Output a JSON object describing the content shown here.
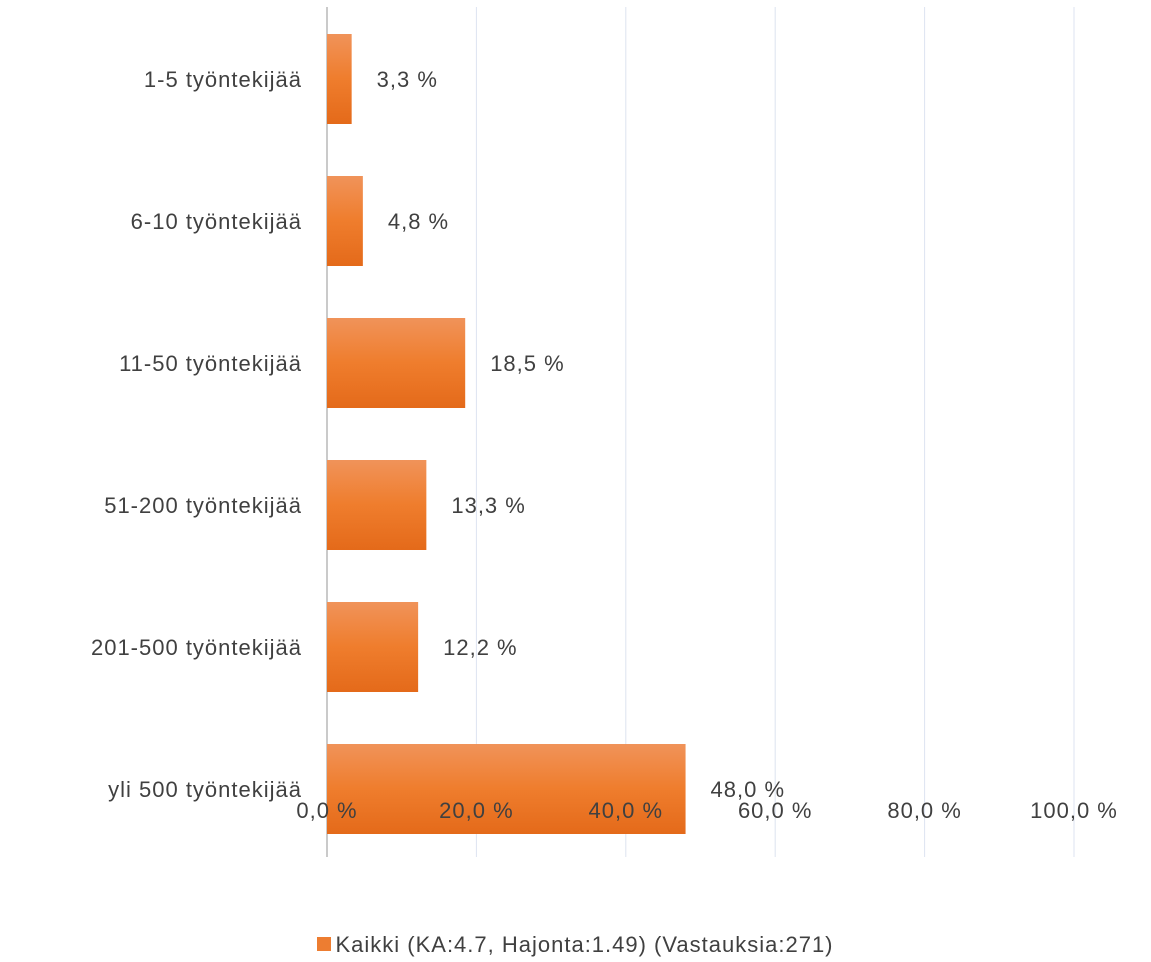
{
  "chart_data": {
    "type": "bar",
    "orientation": "horizontal",
    "categories": [
      "1-5 työntekijää",
      "6-10 työntekijää",
      "11-50 työntekijää",
      "51-200 työntekijää",
      "201-500 työntekijää",
      "yli 500 työntekijää"
    ],
    "series": [
      {
        "name": "Kaikki (KA:4.7, Hajonta:1.49) (Vastauksia:271)",
        "values": [
          3.3,
          4.8,
          18.5,
          13.3,
          12.2,
          48.0
        ],
        "data_labels": [
          "3,3 %",
          "4,8 %",
          "18,5 %",
          "13,3 %",
          "12,2 %",
          "48,0 %"
        ],
        "color": "#ed7d31"
      }
    ],
    "x_ticks": [
      "0,0 %",
      "20,0 %",
      "40,0 %",
      "60,0 %",
      "80,0 %",
      "100,0 %"
    ],
    "xlim": [
      0,
      100
    ],
    "grid": true,
    "legend_position": "bottom",
    "colors": {
      "bar_top": "#f0935a",
      "bar_mid": "#ef7d2d",
      "bar_bottom": "#e46a1a",
      "grid": "#dde3f0",
      "axis": "#a6a6a6",
      "text": "#404040"
    }
  }
}
